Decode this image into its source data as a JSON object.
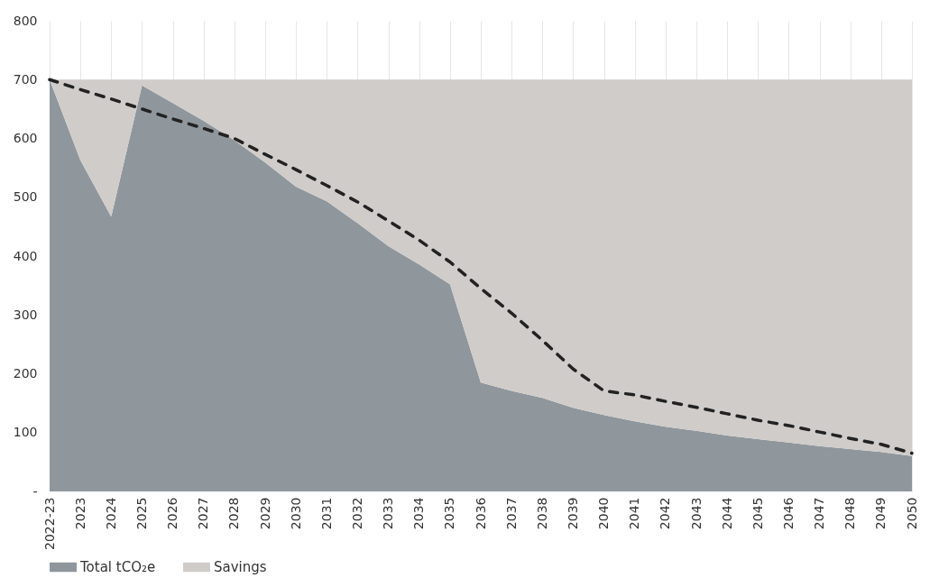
{
  "chart_data": {
    "type": "area",
    "stacked": true,
    "grid": "x",
    "legend": "bottom",
    "categories": [
      "2022-23",
      "2023",
      "2024",
      "2025",
      "2026",
      "2027",
      "2028",
      "2029",
      "2030",
      "2031",
      "2032",
      "2033",
      "2034",
      "2035",
      "2036",
      "2037",
      "2038",
      "2039",
      "2040",
      "2041",
      "2042",
      "2043",
      "2044",
      "2045",
      "2046",
      "2047",
      "2048",
      "2049",
      "2050"
    ],
    "ylim": [
      0,
      800
    ],
    "yticks": [
      {
        "value": 0,
        "label": "-"
      },
      100,
      200,
      300,
      400,
      500,
      600,
      700,
      800
    ],
    "series": [
      {
        "name": "Total tCO₂e",
        "color": "#8f979d",
        "values": [
          700,
          563,
          467,
          690,
          660,
          630,
          597,
          559,
          518,
          493,
          456,
          417,
          386,
          352,
          185,
          171,
          159,
          142,
          130,
          119,
          110,
          103,
          95,
          89,
          83,
          77,
          72,
          67,
          60
        ]
      },
      {
        "name": "Savings",
        "color": "#d0ccc9",
        "values": [
          0,
          137,
          233,
          10,
          40,
          70,
          103,
          141,
          182,
          207,
          244,
          283,
          314,
          348,
          515,
          529,
          541,
          558,
          570,
          581,
          590,
          597,
          605,
          611,
          617,
          623,
          628,
          633,
          640
        ]
      },
      {
        "type": "line",
        "color": "#222222",
        "line_style": "dashed",
        "values": [
          700,
          683,
          667,
          650,
          633,
          617,
          600,
          573,
          547,
          520,
          492,
          460,
          427,
          390,
          345,
          303,
          257,
          208,
          171,
          164,
          153,
          143,
          132,
          121,
          112,
          101,
          90,
          80,
          65
        ]
      }
    ]
  }
}
